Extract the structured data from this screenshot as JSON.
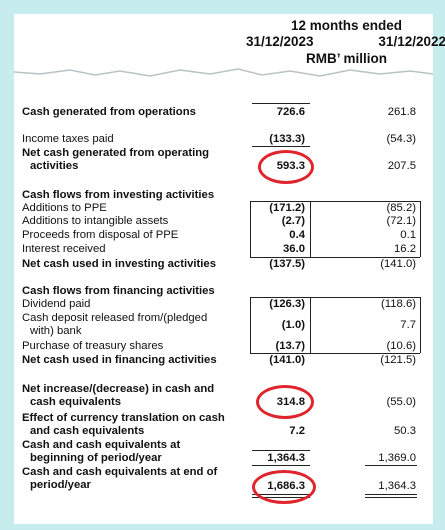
{
  "header": {
    "title": "12 months ended",
    "col_2023": "31/12/2023",
    "col_2022": "31/12/2022",
    "unit": "RMB’ million"
  },
  "rows": [
    {
      "label": "Cash generated from operations",
      "v2023": "726.6",
      "v2022": "261.8"
    },
    {
      "label": "Income taxes paid",
      "v2023": "(133.3)",
      "v2022": "(54.3)"
    },
    {
      "label": "Net cash generated from operating",
      "label2": "activities",
      "v2023": "593.3",
      "v2022": "207.5"
    },
    {
      "label": "Cash flows from investing activities"
    },
    {
      "label": "Additions to PPE",
      "v2023": "(171.2)",
      "v2022": "(85.2)"
    },
    {
      "label": "Additions to intangible assets",
      "v2023": "(2.7)",
      "v2022": "(72.1)"
    },
    {
      "label": "Proceeds from disposal of PPE",
      "v2023": "0.4",
      "v2022": "0.1"
    },
    {
      "label": "Interest received",
      "v2023": "36.0",
      "v2022": "16.2"
    },
    {
      "label": "Net cash used in investing activities",
      "v2023": "(137.5)",
      "v2022": "(141.0)"
    },
    {
      "label": "Cash flows from financing activities"
    },
    {
      "label": "Dividend paid",
      "v2023": "(126.3)",
      "v2022": "(118.6)"
    },
    {
      "label": "Cash deposit released from/(pledged",
      "label2": "with) bank",
      "v2023": "(1.0)",
      "v2022": "7.7"
    },
    {
      "label": "Purchase of treasury shares",
      "v2023": "(13.7)",
      "v2022": "(10.6)"
    },
    {
      "label": "Net cash used in financing activities",
      "v2023": "(141.0)",
      "v2022": "(121.5)"
    },
    {
      "label": "Net increase/(decrease) in cash and",
      "label2": "cash equivalents",
      "v2023": "314.8",
      "v2022": "(55.0)"
    },
    {
      "label": "Effect of currency translation on cash",
      "label2": "and cash equivalents",
      "v2023": "7.2",
      "v2022": "50.3"
    },
    {
      "label": "Cash and cash equivalents at",
      "label2": "beginning of period/year",
      "v2023": "1,364.3",
      "v2022": "1,369.0"
    },
    {
      "label": "Cash and cash equivalents at end of",
      "label2": "period/year",
      "v2023": "1,686.3",
      "v2022": "1,364.3"
    }
  ],
  "highlight_color": "#e0242b"
}
